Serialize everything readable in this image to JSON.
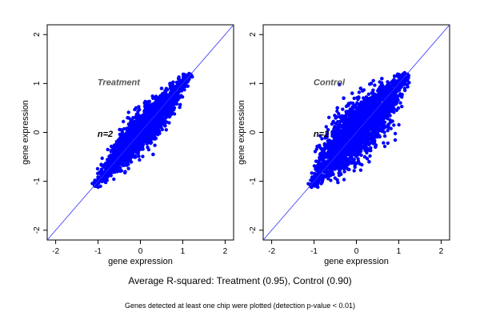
{
  "chart_data": [
    {
      "type": "scatter",
      "title": "Treatment",
      "annotation": "n=2",
      "xlabel": "gene expression",
      "ylabel": "gene expression",
      "xlim": [
        -2.2,
        2.2
      ],
      "ylim": [
        -2.2,
        2.2
      ],
      "xticks": [
        -2,
        -1,
        0,
        1,
        2
      ],
      "yticks": [
        -2,
        -1,
        0,
        1,
        2
      ],
      "grid": false,
      "reference_line": {
        "slope": 1,
        "intercept": 0
      },
      "color": "#0000ff",
      "cloud": {
        "range": [
          -1.1,
          1.2
        ],
        "spread": 0.08,
        "r_squared": 0.95
      },
      "points": [
        {
          "x": -1.05,
          "y": -1.1
        },
        {
          "x": -0.9,
          "y": -0.95
        },
        {
          "x": -0.6,
          "y": -0.3
        },
        {
          "x": -0.45,
          "y": 0.05
        },
        {
          "x": -0.3,
          "y": 0.3
        },
        {
          "x": -0.1,
          "y": 0.5
        },
        {
          "x": 0.1,
          "y": 0.6
        },
        {
          "x": 0.3,
          "y": 0.7
        },
        {
          "x": 0.5,
          "y": 0.9
        },
        {
          "x": 0.7,
          "y": 1.0
        },
        {
          "x": 0.9,
          "y": 1.1
        },
        {
          "x": 1.15,
          "y": 1.2
        },
        {
          "x": -0.5,
          "y": -0.6
        },
        {
          "x": -0.2,
          "y": -0.5
        },
        {
          "x": 0.0,
          "y": -0.3
        },
        {
          "x": 0.2,
          "y": -0.2
        },
        {
          "x": 0.4,
          "y": 0.0
        },
        {
          "x": 0.6,
          "y": 0.3
        },
        {
          "x": 0.8,
          "y": 0.5
        },
        {
          "x": 0.3,
          "y": -0.45
        }
      ]
    },
    {
      "type": "scatter",
      "title": "Control",
      "annotation": "n=2",
      "xlabel": "gene expression",
      "ylabel": "gene expression",
      "xlim": [
        -2.2,
        2.2
      ],
      "ylim": [
        -2.2,
        2.2
      ],
      "xticks": [
        -2,
        -1,
        0,
        1,
        2
      ],
      "yticks": [
        -2,
        -1,
        0,
        1,
        2
      ],
      "grid": false,
      "reference_line": {
        "slope": 1,
        "intercept": 0
      },
      "color": "#0000ff",
      "cloud": {
        "range": [
          -1.1,
          1.2
        ],
        "spread": 0.13,
        "r_squared": 0.9
      },
      "points": [
        {
          "x": -1.0,
          "y": -1.05
        },
        {
          "x": -0.85,
          "y": -0.5
        },
        {
          "x": -0.7,
          "y": -0.1
        },
        {
          "x": -0.55,
          "y": 0.2
        },
        {
          "x": -0.45,
          "y": 0.5
        },
        {
          "x": -0.3,
          "y": 0.7
        },
        {
          "x": -0.1,
          "y": 0.8
        },
        {
          "x": 0.1,
          "y": 0.9
        },
        {
          "x": 0.35,
          "y": 1.0
        },
        {
          "x": 0.6,
          "y": 1.1
        },
        {
          "x": 0.9,
          "y": 1.15
        },
        {
          "x": 1.15,
          "y": 1.2
        },
        {
          "x": -0.4,
          "y": 0.98
        },
        {
          "x": -0.75,
          "y": -0.8
        },
        {
          "x": -0.4,
          "y": -0.7
        },
        {
          "x": -0.1,
          "y": -0.6
        },
        {
          "x": 0.2,
          "y": -0.5
        },
        {
          "x": 0.45,
          "y": -0.3
        },
        {
          "x": 0.65,
          "y": 0.1
        },
        {
          "x": 0.85,
          "y": 0.45
        },
        {
          "x": 0.75,
          "y": 0.15
        },
        {
          "x": 0.3,
          "y": -0.6
        }
      ]
    }
  ],
  "caption": {
    "main": "Average R-squared: Treatment (0.95), Control (0.90)",
    "note": "Genes detected at least one chip were plotted (detection p-value < 0.01)"
  }
}
